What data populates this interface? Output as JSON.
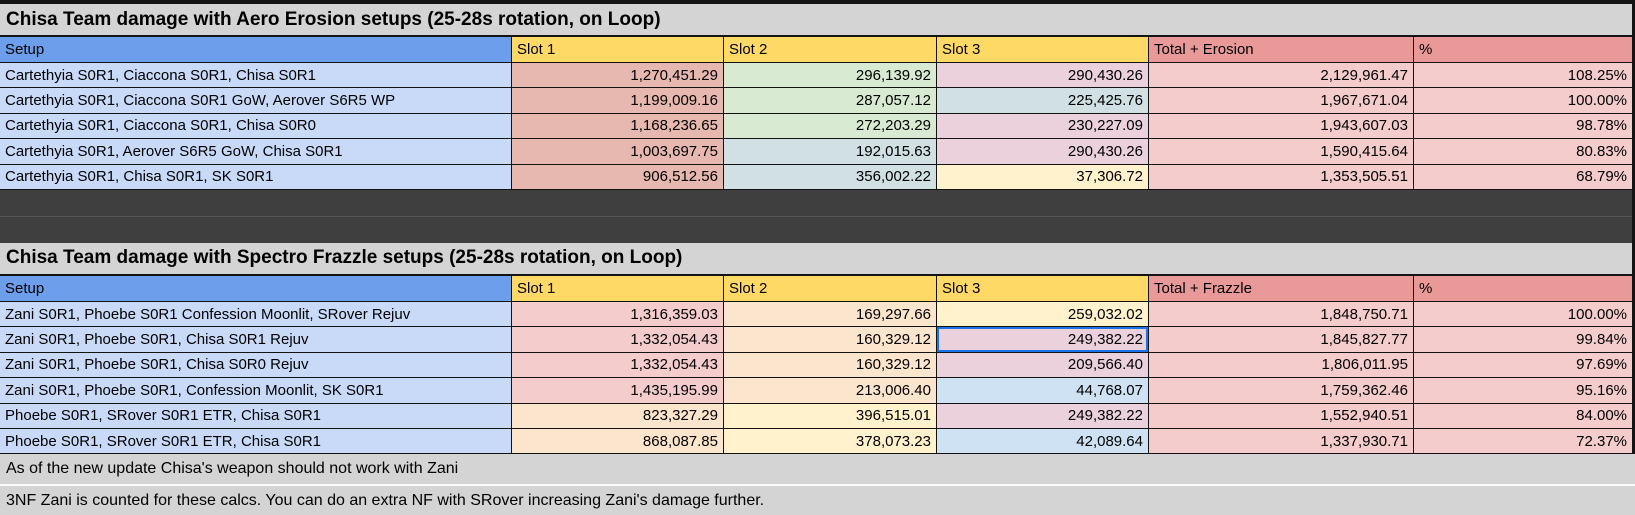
{
  "palette": {
    "page_gray": "#d4d4d4",
    "header_blue": "#6d9eeb",
    "header_yellow": "#ffd966",
    "header_red": "#ea9999",
    "setup_blue": "#c9daf8",
    "salmon": "#e6b8af",
    "pink": "#f4cccc",
    "peach": "#fce5cd",
    "yellow": "#fff2cc",
    "green": "#d9ead3",
    "cyan": "#d0e0e3",
    "blue": "#cfe2f3",
    "lavender": "#ead1dc",
    "dark_band": "#3f3f3f",
    "selection_blue": "#1a73e8"
  },
  "selected_cell": {
    "table": "frazzle",
    "row": 2,
    "column": "Slot 3",
    "value": "249,382.22"
  },
  "t1": {
    "title": "Chisa Team damage with Aero Erosion setups (25-28s rotation, on Loop)",
    "headers": {
      "setup": "Setup",
      "slot1": "Slot 1",
      "slot2": "Slot 2",
      "slot3": "Slot 3",
      "total": "Total + Erosion",
      "pct": "%"
    },
    "rows": [
      {
        "setup": "Cartethyia S0R1, Ciaccona S0R1, Chisa S0R1",
        "slot1": "1,270,451.29",
        "slot2": "296,139.92",
        "slot3": "290,430.26",
        "total": "2,129,961.47",
        "pct": "108.25%",
        "bg1": "salmon",
        "bg2": "green",
        "bg3": "lavender"
      },
      {
        "setup": "Cartethyia S0R1, Ciaccona S0R1 GoW, Aerover S6R5 WP",
        "slot1": "1,199,009.16",
        "slot2": "287,057.12",
        "slot3": "225,425.76",
        "total": "1,967,671.04",
        "pct": "100.00%",
        "bg1": "salmon",
        "bg2": "green",
        "bg3": "cyan"
      },
      {
        "setup": "Cartethyia S0R1, Ciaccona S0R1, Chisa S0R0",
        "slot1": "1,168,236.65",
        "slot2": "272,203.29",
        "slot3": "230,227.09",
        "total": "1,943,607.03",
        "pct": "98.78%",
        "bg1": "salmon",
        "bg2": "green",
        "bg3": "lavender"
      },
      {
        "setup": "Cartethyia S0R1, Aerover S6R5 GoW, Chisa S0R1",
        "slot1": "1,003,697.75",
        "slot2": "192,015.63",
        "slot3": "290,430.26",
        "total": "1,590,415.64",
        "pct": "80.83%",
        "bg1": "salmon",
        "bg2": "cyan",
        "bg3": "lavender"
      },
      {
        "setup": "Cartethyia S0R1, Chisa S0R1, SK S0R1",
        "slot1": "906,512.56",
        "slot2": "356,002.22",
        "slot3": "37,306.72",
        "total": "1,353,505.51",
        "pct": "68.79%",
        "bg1": "salmon",
        "bg2": "cyan",
        "bg3": "yellow"
      }
    ]
  },
  "t2": {
    "title": "Chisa Team damage with Spectro Frazzle setups (25-28s rotation, on Loop)",
    "headers": {
      "setup": "Setup",
      "slot1": "Slot 1",
      "slot2": "Slot 2",
      "slot3": "Slot 3",
      "total": "Total + Frazzle",
      "pct": "%"
    },
    "rows": [
      {
        "setup": "Zani S0R1, Phoebe S0R1 Confession Moonlit, SRover Rejuv",
        "slot1": "1,316,359.03",
        "slot2": "169,297.66",
        "slot3": "259,032.02",
        "total": "1,848,750.71",
        "pct": "100.00%",
        "bg1": "pink",
        "bg2": "peach",
        "bg3": "yellow"
      },
      {
        "setup": "Zani S0R1, Phoebe S0R1, Chisa S0R1 Rejuv",
        "slot1": "1,332,054.43",
        "slot2": "160,329.12",
        "slot3": "249,382.22",
        "total": "1,845,827.77",
        "pct": "99.84%",
        "bg1": "pink",
        "bg2": "peach",
        "bg3": "lavender"
      },
      {
        "setup": "Zani S0R1, Phoebe S0R1, Chisa S0R0 Rejuv",
        "slot1": "1,332,054.43",
        "slot2": "160,329.12",
        "slot3": "209,566.40",
        "total": "1,806,011.95",
        "pct": "97.69%",
        "bg1": "pink",
        "bg2": "peach",
        "bg3": "lavender"
      },
      {
        "setup": "Zani S0R1, Phoebe S0R1, Confession Moonlit, SK S0R1",
        "slot1": "1,435,195.99",
        "slot2": "213,006.40",
        "slot3": "44,768.07",
        "total": "1,759,362.46",
        "pct": "95.16%",
        "bg1": "pink",
        "bg2": "peach",
        "bg3": "blue"
      },
      {
        "setup": "Phoebe S0R1, SRover S0R1 ETR, Chisa S0R1",
        "slot1": "823,327.29",
        "slot2": "396,515.01",
        "slot3": "249,382.22",
        "total": "1,552,940.51",
        "pct": "84.00%",
        "bg1": "peach",
        "bg2": "yellow",
        "bg3": "lavender"
      },
      {
        "setup": "Phoebe S0R1, SRover S0R1 ETR, Chisa S0R1",
        "slot1": "868,087.85",
        "slot2": "378,073.23",
        "slot3": "42,089.64",
        "total": "1,337,930.71",
        "pct": "72.37%",
        "bg1": "peach",
        "bg2": "yellow",
        "bg3": "blue"
      }
    ]
  },
  "notes": [
    "As of the new update Chisa's weapon should not work with Zani",
    "3NF Zani is counted for these calcs. You can do an extra NF with SRover increasing Zani's damage further."
  ]
}
